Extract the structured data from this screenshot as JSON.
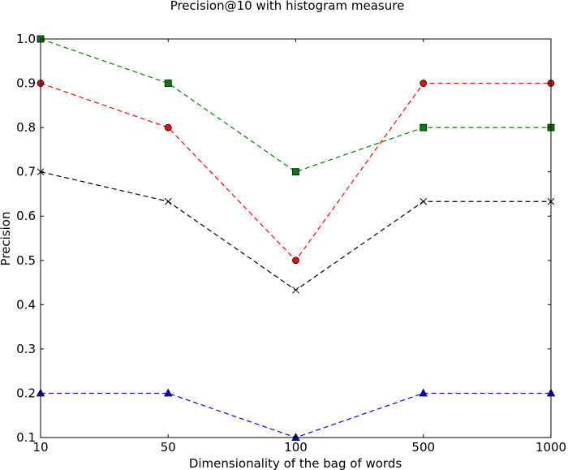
{
  "chart_data": {
    "type": "line",
    "title": "Precision@10 with histogram measure",
    "xlabel": "Dimensionality of the bag of words",
    "ylabel": "Precision",
    "categories": [
      "10",
      "50",
      "100",
      "500",
      "1000"
    ],
    "yticks": [
      "0.1",
      "0.2",
      "0.3",
      "0.4",
      "0.5",
      "0.6",
      "0.7",
      "0.8",
      "0.9",
      "1.0"
    ],
    "ylim": [
      0.1,
      1.0
    ],
    "grid": false,
    "series": [
      {
        "values": [
          1.0,
          0.9,
          0.7,
          0.8,
          0.8
        ],
        "color": "#008000",
        "marker": "square"
      },
      {
        "values": [
          0.9,
          0.8,
          0.5,
          0.9,
          0.9
        ],
        "color": "#ff0000",
        "marker": "circle"
      },
      {
        "values": [
          0.7,
          0.633,
          0.433,
          0.633,
          0.633
        ],
        "color": "#000000",
        "marker": "x"
      },
      {
        "values": [
          0.2,
          0.2,
          0.1,
          0.2,
          0.2
        ],
        "color": "#0000ff",
        "marker": "triangle"
      }
    ]
  }
}
